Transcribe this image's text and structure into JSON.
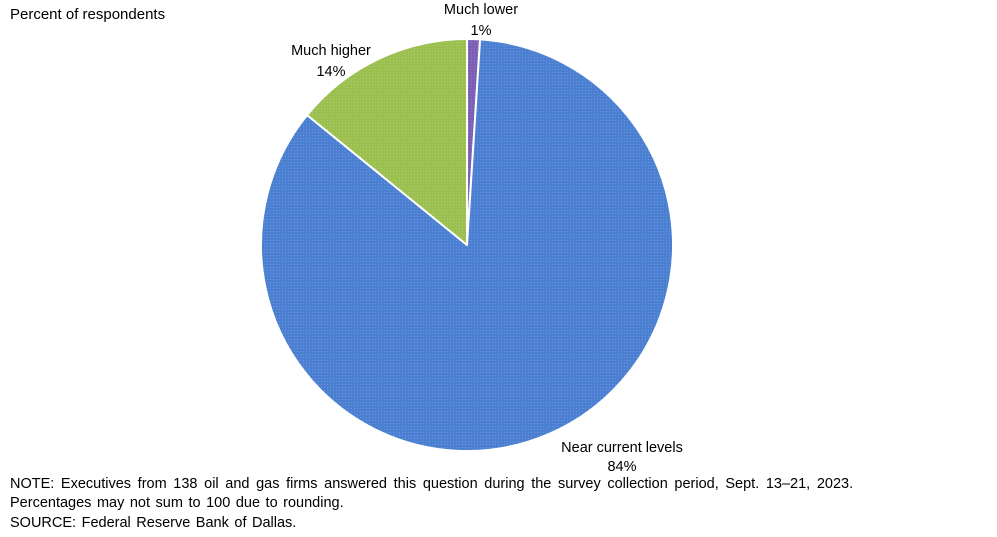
{
  "chart_data": {
    "type": "pie",
    "ylabel": "Percent of respondents",
    "slices": [
      {
        "label": "Much lower",
        "value": 1,
        "value_label": "1%",
        "color": "#7a5fb5"
      },
      {
        "label": "Near current levels",
        "value": 84,
        "value_label": "84%",
        "color": "#4a7fd2"
      },
      {
        "label": "Much higher",
        "value": 14,
        "value_label": "14%",
        "color": "#9bc04f"
      }
    ],
    "start_angle_deg": 0,
    "direction": "clockwise",
    "legend": "none"
  },
  "footnotes": {
    "note_line1": "NOTE:  Executives  from  138  oil  and  gas  firms  answered  this  question  during  the  survey  collection  period,  Sept.  13–21,  2023.",
    "note_line2": "Percentages  may  not  sum  to  100  due  to  rounding.",
    "source": "SOURCE:  Federal  Reserve  Bank  of  Dallas."
  }
}
